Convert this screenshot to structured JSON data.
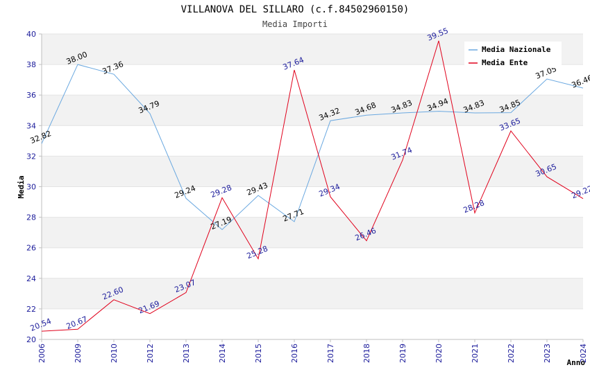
{
  "chart_data": {
    "type": "line",
    "title": "VILLANOVA DEL SILLARO (c.f.84502960150)",
    "subtitle": "Media Importi",
    "xlabel": "Anno",
    "ylabel": "Media",
    "ylim": [
      20,
      40
    ],
    "yticks": [
      20,
      22,
      24,
      26,
      28,
      30,
      32,
      34,
      36,
      38,
      40
    ],
    "categories": [
      "2006",
      "2009",
      "2010",
      "2012",
      "2013",
      "2014",
      "2015",
      "2016",
      "2017",
      "2018",
      "2019",
      "2020",
      "2021",
      "2022",
      "2023",
      "2024"
    ],
    "legend_position": "top-right",
    "grid": true,
    "series": [
      {
        "name": "Media Nazionale",
        "color": "#6aa8e0",
        "values": [
          32.82,
          38.0,
          37.36,
          34.79,
          29.24,
          27.19,
          29.43,
          27.71,
          34.32,
          34.68,
          34.83,
          34.94,
          34.83,
          34.85,
          37.05,
          36.46
        ],
        "labels": [
          "32.82",
          "38.00",
          "37.36",
          "34.79",
          "29.24",
          "27.19",
          "29.43",
          "27.71",
          "34.32",
          "34.68",
          "34.83",
          "34.94",
          "34.83",
          "34.85",
          "37.05",
          "36.46"
        ]
      },
      {
        "name": "Media Ente",
        "color": "#e0001b",
        "values": [
          20.54,
          20.67,
          22.6,
          21.69,
          23.07,
          29.28,
          25.28,
          37.64,
          29.34,
          26.46,
          31.74,
          39.55,
          28.28,
          33.65,
          30.65,
          29.22
        ],
        "labels": [
          "20.54",
          "20.67",
          "22.60",
          "21.69",
          "23.07",
          "29.28",
          "25.28",
          "37.64",
          "29.34",
          "26.46",
          "31.74",
          "39.55",
          "28.28",
          "33.65",
          "30.65",
          "29.22"
        ]
      }
    ]
  }
}
